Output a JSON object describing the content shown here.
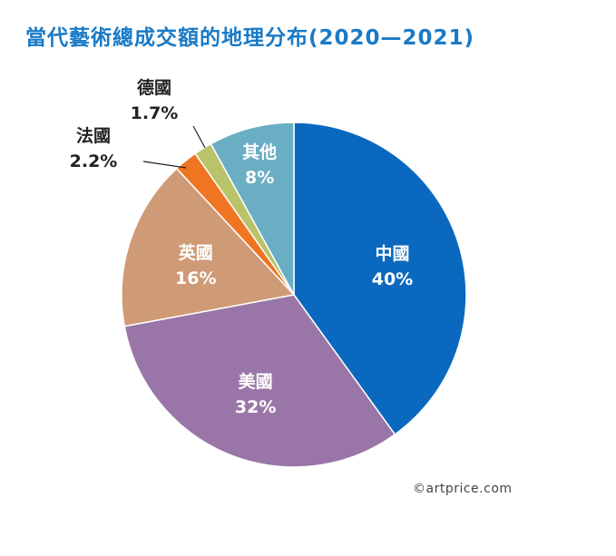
{
  "header": {
    "title": "當代藝術總成交額的地理分布(2020—2021)",
    "credit": "©artprice.com"
  },
  "chart_data": {
    "type": "pie",
    "title": "當代藝術總成交額的地理分布(2020—2021)",
    "slices": [
      {
        "name": "中國",
        "value": 40,
        "label": "40%",
        "color": "#0a69be",
        "label_position": "inside",
        "text_color": "#ffffff"
      },
      {
        "name": "美國",
        "value": 32,
        "label": "32%",
        "color": "#9a76a8",
        "label_position": "inside",
        "text_color": "#ffffff"
      },
      {
        "name": "英國",
        "value": 16,
        "label": "16%",
        "color": "#cf9a76",
        "label_position": "inside",
        "text_color": "#ffffff"
      },
      {
        "name": "法國",
        "value": 2.2,
        "label": "2.2%",
        "color": "#f07522",
        "label_position": "outside",
        "text_color": "#222222"
      },
      {
        "name": "德國",
        "value": 1.7,
        "label": "1.7%",
        "color": "#b8c36a",
        "label_position": "outside",
        "text_color": "#222222"
      },
      {
        "name": "其他",
        "value": 8,
        "label": "8%",
        "color": "#6aaec4",
        "label_position": "inside",
        "text_color": "#ffffff"
      }
    ],
    "start": "12 o'clock",
    "direction": "clockwise",
    "legend": "none"
  }
}
